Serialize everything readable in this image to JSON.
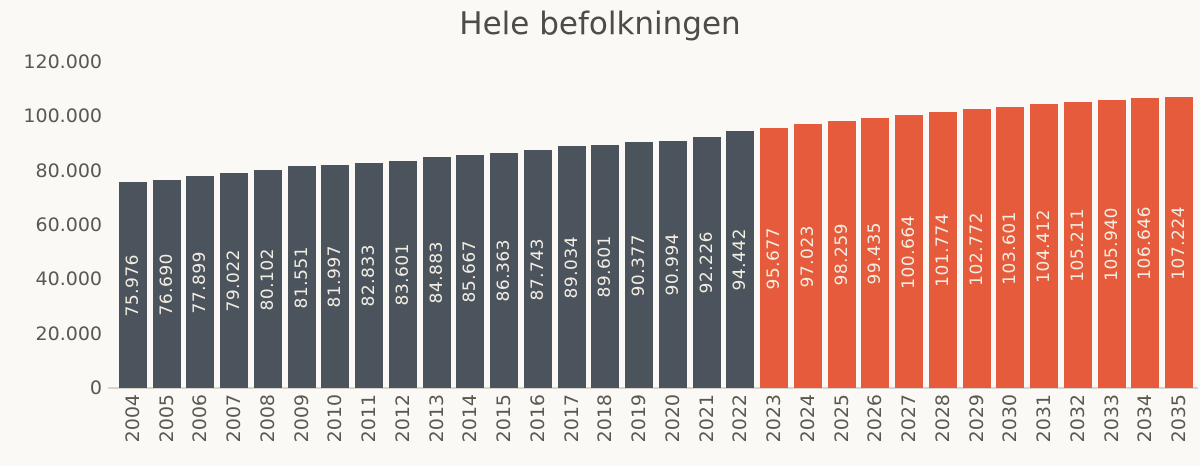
{
  "chart_data": {
    "type": "bar",
    "title": "Hele befolkningen",
    "categories": [
      "2004",
      "2005",
      "2006",
      "2007",
      "2008",
      "2009",
      "2010",
      "2011",
      "2012",
      "2013",
      "2014",
      "2015",
      "2016",
      "2017",
      "2018",
      "2019",
      "2020",
      "2021",
      "2022",
      "2023",
      "2024",
      "2025",
      "2026",
      "2027",
      "2028",
      "2029",
      "2030",
      "2031",
      "2032",
      "2033",
      "2034",
      "2035"
    ],
    "series": [
      {
        "name": "grey-bars-2004-2022",
        "color": "#4b535d",
        "values": [
          75976,
          76690,
          77899,
          79022,
          80102,
          81551,
          81997,
          82833,
          83601,
          84883,
          85667,
          86363,
          87743,
          89034,
          89601,
          90377,
          90994,
          92226,
          94442
        ]
      },
      {
        "name": "orange-bars-2023-2035",
        "color": "#e55b3c",
        "values": [
          95677,
          97023,
          98259,
          99435,
          100664,
          101774,
          102772,
          103601,
          104412,
          105211,
          105940,
          106646,
          107224
        ]
      }
    ],
    "value_labels_formatted": [
      "75.976",
      "76.690",
      "77.899",
      "79.022",
      "80.102",
      "81.551",
      "81.997",
      "82.833",
      "83.601",
      "84.883",
      "85.667",
      "86.363",
      "87.743",
      "89.034",
      "89.601",
      "90.377",
      "90.994",
      "92.226",
      "94.442",
      "95.677",
      "97.023",
      "98.259",
      "99.435",
      "100.664",
      "101.774",
      "102.772",
      "103.601",
      "104.412",
      "105.211",
      "105.940",
      "106.646",
      "107.224"
    ],
    "ylim": [
      0,
      120000
    ],
    "ytick_values": [
      0,
      20000,
      40000,
      60000,
      80000,
      100000,
      120000
    ],
    "ytick_labels": [
      "0",
      "20.000",
      "40.000",
      "60.000",
      "80.000",
      "100.000",
      "120.000"
    ],
    "grid": false,
    "legend": "none",
    "value_label_position": "inside-vertical-centered",
    "bar_label_color": "#f2ede2",
    "axis_text_color": "#5b5851",
    "title_color": "#4e4c49",
    "axis_line_color": "#d9d5ce",
    "background_color": "#fbf9f5"
  }
}
